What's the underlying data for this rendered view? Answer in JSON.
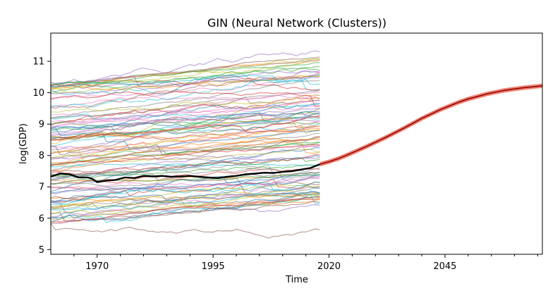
{
  "chart_data": {
    "type": "line",
    "title": "GIN (Neural Network (Clusters))",
    "xlabel": "Time",
    "ylabel": "log(GDP)",
    "xlim": [
      1960,
      2066
    ],
    "ylim": [
      4.85,
      11.9
    ],
    "x_ticks": [
      1970,
      1995,
      2020,
      2045
    ],
    "x_tick_labels": [
      "1970",
      "1995",
      "2020",
      "2045"
    ],
    "y_ticks": [
      5,
      6,
      7,
      8,
      9,
      10,
      11
    ],
    "y_tick_labels": [
      "5",
      "6",
      "7",
      "8",
      "9",
      "10",
      "11"
    ],
    "grid": false,
    "legend": "none",
    "colors": {
      "highlight": "#000000",
      "forecast_mean": "#8b0000",
      "forecast_band": "#f08070",
      "palette": [
        "#1f77b4",
        "#ff7f0e",
        "#2ca02c",
        "#d62728",
        "#9467bd",
        "#8c564b",
        "#e377c2",
        "#7f7f7f",
        "#bcbd22",
        "#17becf"
      ]
    },
    "historical_background": {
      "x_range": [
        1960,
        2018
      ],
      "count": 110,
      "start_min": 5.8,
      "start_max": 10.3,
      "end_min": 6.5,
      "end_max": 11.3
    },
    "highlight_series": {
      "x": [
        1960,
        1962,
        1964,
        1966,
        1968,
        1969,
        1970,
        1972,
        1974,
        1976,
        1978,
        1980,
        1982,
        1984,
        1986,
        1988,
        1990,
        1992,
        1994,
        1996,
        1998,
        2000,
        2002,
        2004,
        2006,
        2008,
        2010,
        2012,
        2014,
        2016,
        2018
      ],
      "y": [
        7.33,
        7.42,
        7.4,
        7.3,
        7.3,
        7.25,
        7.15,
        7.2,
        7.22,
        7.3,
        7.28,
        7.35,
        7.33,
        7.35,
        7.32,
        7.33,
        7.35,
        7.32,
        7.3,
        7.28,
        7.32,
        7.35,
        7.4,
        7.42,
        7.45,
        7.44,
        7.48,
        7.5,
        7.55,
        7.6,
        7.72
      ]
    },
    "forecast": {
      "x": [
        2018,
        2020,
        2022,
        2024,
        2026,
        2028,
        2030,
        2032,
        2034,
        2036,
        2038,
        2040,
        2042,
        2044,
        2046,
        2048,
        2050,
        2052,
        2054,
        2056,
        2058,
        2060,
        2062,
        2064,
        2066
      ],
      "mean": [
        7.72,
        7.8,
        7.9,
        8.02,
        8.15,
        8.28,
        8.42,
        8.56,
        8.71,
        8.86,
        9.02,
        9.18,
        9.32,
        9.46,
        9.58,
        9.7,
        9.8,
        9.88,
        9.96,
        10.02,
        10.08,
        10.12,
        10.16,
        10.19,
        10.22
      ],
      "band_width": 0.06
    }
  }
}
